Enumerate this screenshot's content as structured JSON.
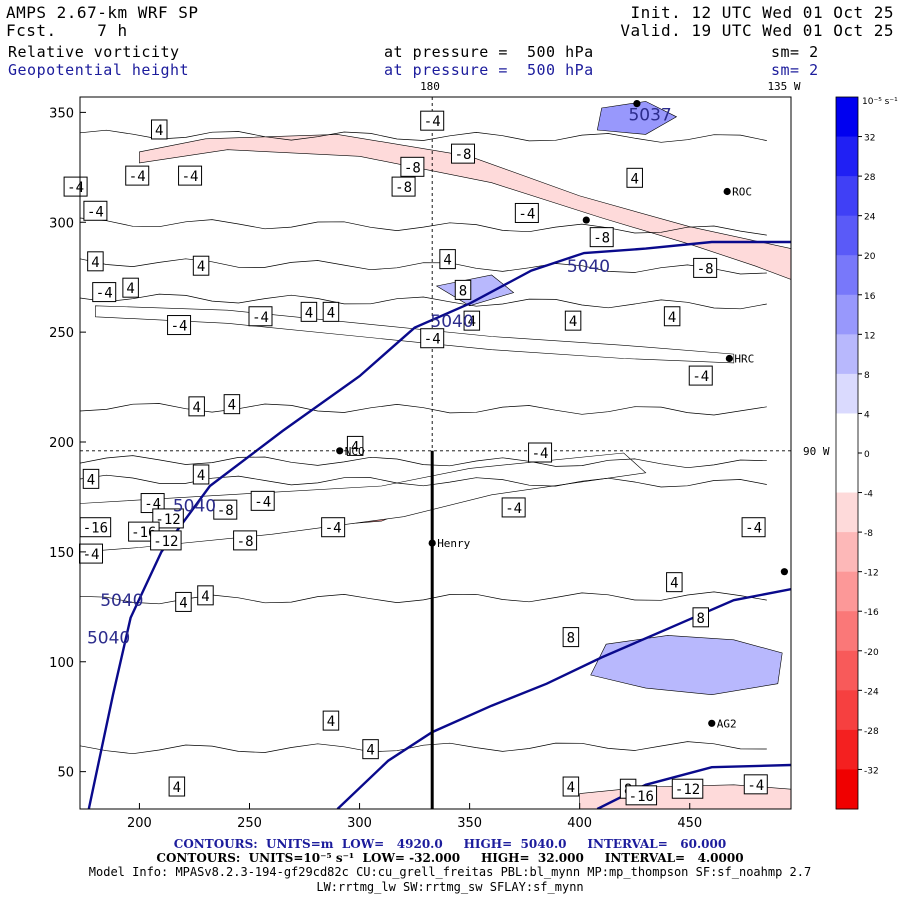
{
  "header": {
    "title": "AMPS 2.67-km WRF SP",
    "fcst_label": "Fcst.",
    "fcst_value": "7 h",
    "init": "Init. 12 UTC Wed 01 Oct 25",
    "valid": "Valid. 19 UTC Wed 01 Oct 25",
    "field1": "Relative vorticity",
    "field1_level": "at pressure =  500 hPa",
    "field1_sm": "sm= 2",
    "field2": "Geopotential height",
    "field2_level": "at pressure =  500 hPa",
    "field2_sm": "sm= 2"
  },
  "map_labels": {
    "lon_180": "180",
    "lon_135w": "135 W",
    "lat_90w": "90 W"
  },
  "stations": [
    {
      "name": "NCO",
      "x": 291,
      "y": 196
    },
    {
      "name": "Henry",
      "x": 333,
      "y": 154
    },
    {
      "name": "ROC",
      "x": 467,
      "y": 314
    },
    {
      "name": "HRC",
      "x": 468,
      "y": 238
    },
    {
      "name": "AG2",
      "x": 460,
      "y": 72
    },
    {
      "name": "",
      "x": 403,
      "y": 301
    },
    {
      "name": "",
      "x": 493,
      "y": 141
    },
    {
      "name": "",
      "x": 426,
      "y": 354
    }
  ],
  "chart_data": {
    "type": "contour",
    "title": "Relative vorticity and Geopotential height at 500 hPa",
    "xlim": [
      173,
      496
    ],
    "ylim": [
      33,
      357
    ],
    "x_ticks": [
      200,
      250,
      300,
      350,
      400,
      450
    ],
    "y_ticks": [
      50,
      100,
      150,
      200,
      250,
      300,
      350
    ],
    "crosshair": {
      "x": 333,
      "y": 196
    },
    "cross_section": {
      "x": 333,
      "y_from": 196,
      "y_to": 33
    },
    "height_contours": [
      {
        "value": 5040,
        "points": [
          [
            177,
            33
          ],
          [
            188,
            85
          ],
          [
            196,
            120
          ],
          [
            210,
            150
          ],
          [
            232,
            180
          ],
          [
            265,
            205
          ],
          [
            300,
            230
          ],
          [
            325,
            252
          ],
          [
            350,
            263
          ],
          [
            378,
            278
          ],
          [
            402,
            286
          ],
          [
            430,
            288
          ],
          [
            460,
            291
          ],
          [
            496,
            291
          ]
        ]
      },
      {
        "value": 5040,
        "points": [
          [
            290,
            33
          ],
          [
            313,
            55
          ],
          [
            333,
            68
          ],
          [
            360,
            80
          ],
          [
            385,
            90
          ],
          [
            410,
            102
          ],
          [
            440,
            115
          ],
          [
            470,
            128
          ],
          [
            496,
            133
          ]
        ]
      },
      {
        "value": 5040,
        "points": [
          [
            408,
            33
          ],
          [
            430,
            44
          ],
          [
            460,
            52
          ],
          [
            496,
            53
          ]
        ]
      }
    ],
    "height_labels": [
      {
        "text": "5040",
        "x": 192,
        "y": 128
      },
      {
        "text": "5040",
        "x": 186,
        "y": 111
      },
      {
        "text": "5040",
        "x": 225,
        "y": 171
      },
      {
        "text": "5040",
        "x": 342,
        "y": 255
      },
      {
        "text": "5040",
        "x": 404,
        "y": 280
      },
      {
        "text": "5037",
        "x": 432,
        "y": 349
      }
    ],
    "vort_fill": [
      {
        "value": -8,
        "points": [
          [
            200,
            327
          ],
          [
            240,
            333
          ],
          [
            300,
            330
          ],
          [
            360,
            318
          ],
          [
            410,
            302
          ],
          [
            450,
            290
          ],
          [
            480,
            280
          ],
          [
            496,
            274
          ],
          [
            496,
            288
          ],
          [
            450,
            298
          ],
          [
            400,
            312
          ],
          [
            350,
            330
          ],
          [
            290,
            340
          ],
          [
            230,
            338
          ],
          [
            200,
            332
          ]
        ]
      },
      {
        "value": -16,
        "points": [
          [
            173,
            167
          ],
          [
            220,
            170
          ],
          [
            290,
            172
          ],
          [
            330,
            172
          ],
          [
            310,
            164
          ],
          [
            260,
            160
          ],
          [
            210,
            155
          ],
          [
            173,
            153
          ]
        ]
      },
      {
        "value": -4,
        "points": [
          [
            173,
            172
          ],
          [
            240,
            176
          ],
          [
            310,
            180
          ],
          [
            350,
            188
          ],
          [
            420,
            195
          ],
          [
            430,
            186
          ],
          [
            360,
            176
          ],
          [
            320,
            166
          ],
          [
            260,
            158
          ],
          [
            200,
            152
          ],
          [
            173,
            150
          ]
        ]
      },
      {
        "value": -4,
        "points": [
          [
            180,
            262
          ],
          [
            240,
            260
          ],
          [
            300,
            254
          ],
          [
            360,
            248
          ],
          [
            420,
            244
          ],
          [
            470,
            240
          ],
          [
            470,
            236
          ],
          [
            420,
            238
          ],
          [
            360,
            242
          ],
          [
            300,
            248
          ],
          [
            240,
            254
          ],
          [
            180,
            257
          ]
        ]
      },
      {
        "value": -8,
        "points": [
          [
            400,
            40
          ],
          [
            430,
            43
          ],
          [
            470,
            44
          ],
          [
            496,
            42
          ],
          [
            496,
            33
          ],
          [
            400,
            33
          ]
        ]
      },
      {
        "value": 4,
        "points": [
          [
            405,
            94
          ],
          [
            430,
            88
          ],
          [
            460,
            85
          ],
          [
            490,
            90
          ],
          [
            492,
            104
          ],
          [
            470,
            110
          ],
          [
            440,
            112
          ],
          [
            412,
            108
          ]
        ]
      },
      {
        "value": 4,
        "points": [
          [
            335,
            271
          ],
          [
            360,
            276
          ],
          [
            370,
            268
          ],
          [
            350,
            262
          ]
        ]
      },
      {
        "value": 8,
        "points": [
          [
            408,
            342
          ],
          [
            430,
            340
          ],
          [
            444,
            348
          ],
          [
            430,
            355
          ],
          [
            410,
            352
          ]
        ]
      }
    ],
    "vort_labels": [
      {
        "t": "4",
        "x": 209,
        "y": 342
      },
      {
        "t": "-4",
        "x": 199,
        "y": 321
      },
      {
        "t": "-4",
        "x": 223,
        "y": 321
      },
      {
        "t": "-4",
        "x": 171,
        "y": 316
      },
      {
        "t": "-4",
        "x": 180,
        "y": 305
      },
      {
        "t": "-4",
        "x": 333,
        "y": 346
      },
      {
        "t": "-8",
        "x": 347,
        "y": 331
      },
      {
        "t": "-8",
        "x": 324,
        "y": 325
      },
      {
        "t": "-8",
        "x": 320,
        "y": 316
      },
      {
        "t": "-4",
        "x": 376,
        "y": 304
      },
      {
        "t": "4",
        "x": 425,
        "y": 320
      },
      {
        "t": "-8",
        "x": 410,
        "y": 293
      },
      {
        "t": "-8",
        "x": 457,
        "y": 279
      },
      {
        "t": "4",
        "x": 180,
        "y": 282
      },
      {
        "t": "4",
        "x": 228,
        "y": 280
      },
      {
        "t": "4",
        "x": 340,
        "y": 283
      },
      {
        "t": "8",
        "x": 347,
        "y": 269
      },
      {
        "t": "-4",
        "x": 184,
        "y": 268
      },
      {
        "t": "4",
        "x": 196,
        "y": 270
      },
      {
        "t": "-4",
        "x": 255,
        "y": 257
      },
      {
        "t": "-4",
        "x": 218,
        "y": 253
      },
      {
        "t": "4",
        "x": 277,
        "y": 259
      },
      {
        "t": "4",
        "x": 287,
        "y": 259
      },
      {
        "t": "-4",
        "x": 333,
        "y": 247
      },
      {
        "t": "4",
        "x": 351,
        "y": 255
      },
      {
        "t": "4",
        "x": 397,
        "y": 255
      },
      {
        "t": "4",
        "x": 442,
        "y": 257
      },
      {
        "t": "-4",
        "x": 455,
        "y": 230
      },
      {
        "t": "4",
        "x": 226,
        "y": 216
      },
      {
        "t": "4",
        "x": 242,
        "y": 217
      },
      {
        "t": "4",
        "x": 298,
        "y": 198
      },
      {
        "t": "-4",
        "x": 382,
        "y": 195
      },
      {
        "t": "4",
        "x": 178,
        "y": 183
      },
      {
        "t": "4",
        "x": 228,
        "y": 185
      },
      {
        "t": "-4",
        "x": 206,
        "y": 172
      },
      {
        "t": "-4",
        "x": 256,
        "y": 173
      },
      {
        "t": "-4",
        "x": 370,
        "y": 170
      },
      {
        "t": "-8",
        "x": 239,
        "y": 169
      },
      {
        "t": "-12",
        "x": 213,
        "y": 165
      },
      {
        "t": "-16",
        "x": 180,
        "y": 161
      },
      {
        "t": "-16",
        "x": 202,
        "y": 159
      },
      {
        "t": "-12",
        "x": 212,
        "y": 155
      },
      {
        "t": "-8",
        "x": 248,
        "y": 155
      },
      {
        "t": "-4",
        "x": 288,
        "y": 161
      },
      {
        "t": "-4",
        "x": 479,
        "y": 161
      },
      {
        "t": "-4",
        "x": 178,
        "y": 149
      },
      {
        "t": "4",
        "x": 443,
        "y": 136
      },
      {
        "t": "4",
        "x": 220,
        "y": 127
      },
      {
        "t": "4",
        "x": 230,
        "y": 130
      },
      {
        "t": "8",
        "x": 455,
        "y": 120
      },
      {
        "t": "8",
        "x": 396,
        "y": 111
      },
      {
        "t": "4",
        "x": 287,
        "y": 73
      },
      {
        "t": "4",
        "x": 305,
        "y": 60
      },
      {
        "t": "4",
        "x": 217,
        "y": 43
      },
      {
        "t": "4",
        "x": 396,
        "y": 43
      },
      {
        "t": "8",
        "x": 422,
        "y": 42
      },
      {
        "t": "-12",
        "x": 449,
        "y": 42
      },
      {
        "t": "-16",
        "x": 428,
        "y": 39
      },
      {
        "t": "-4",
        "x": 480,
        "y": 44
      }
    ],
    "colorbar": {
      "unit_label": "10⁻⁵ s⁻¹",
      "levels": [
        32,
        28,
        24,
        20,
        16,
        12,
        8,
        4,
        0,
        -4,
        -8,
        -12,
        -16,
        -20,
        -24,
        -28,
        -32
      ],
      "colors": [
        "#0000f0",
        "#2020f4",
        "#4040f6",
        "#5a5af8",
        "#7878fa",
        "#9898fc",
        "#b8b8fd",
        "#dadafe",
        "#ffffff",
        "#ffffff",
        "#fedada",
        "#fdb8b8",
        "#fc9898",
        "#fa7878",
        "#f85a5a",
        "#f64040",
        "#f42020",
        "#f00000"
      ]
    }
  },
  "footer": {
    "line1_contours": "CONTOURS:",
    "line1_units": "UNITS=m",
    "line1_low": "LOW=   4920.0",
    "line1_high": "HIGH=  5040.0",
    "line1_interval": "INTERVAL=   60.000",
    "line2_contours": "CONTOURS:",
    "line2_units": "UNITS=10⁻⁵ s⁻¹",
    "line2_low": "LOW= -32.000",
    "line2_high": "HIGH=  32.000",
    "line2_interval": "INTERVAL=   4.0000",
    "model_info": "Model Info: MPASv8.2.3-194-gf29cd82c CU:cu_grell_freitas PBL:bl_mynn MP:mp_thompson SF:sf_noahmp 2.7",
    "model_info2": "LW:rrtmg_lw SW:rrtmg_sw SFLAY:sf_mynn"
  }
}
